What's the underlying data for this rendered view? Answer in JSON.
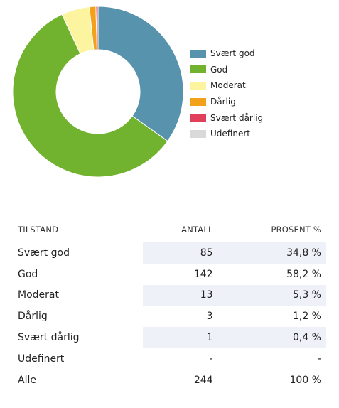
{
  "chart_data": {
    "type": "pie",
    "variant": "donut",
    "categories": [
      "Svært god",
      "God",
      "Moderat",
      "Dårlig",
      "Svært dårlig",
      "Udefinert"
    ],
    "values": [
      85,
      142,
      13,
      3,
      1,
      0
    ],
    "colors": [
      "#5893ad",
      "#71b22e",
      "#fdf4a0",
      "#f2a21a",
      "#e0405a",
      "#d9d9d9"
    ],
    "legend_position": "right"
  },
  "legend": {
    "items": [
      {
        "label": "Svært god",
        "color": "#5893ad"
      },
      {
        "label": "God",
        "color": "#71b22e"
      },
      {
        "label": "Moderat",
        "color": "#fdf4a0"
      },
      {
        "label": "Dårlig",
        "color": "#f2a21a"
      },
      {
        "label": "Svært dårlig",
        "color": "#e0405a"
      },
      {
        "label": "Udefinert",
        "color": "#d9d9d9"
      }
    ]
  },
  "table": {
    "headers": {
      "tilstand": "TILSTAND",
      "antall": "ANTALL",
      "prosent": "PROSENT %"
    },
    "rows": [
      {
        "tilstand": "Svært god",
        "antall": "85",
        "prosent": "34,8 %"
      },
      {
        "tilstand": "God",
        "antall": "142",
        "prosent": "58,2 %"
      },
      {
        "tilstand": "Moderat",
        "antall": "13",
        "prosent": "5,3 %"
      },
      {
        "tilstand": "Dårlig",
        "antall": "3",
        "prosent": "1,2 %"
      },
      {
        "tilstand": "Svært dårlig",
        "antall": "1",
        "prosent": "0,4 %"
      },
      {
        "tilstand": "Udefinert",
        "antall": "-",
        "prosent": "-"
      },
      {
        "tilstand": "Alle",
        "antall": "244",
        "prosent": "100 %"
      }
    ]
  }
}
